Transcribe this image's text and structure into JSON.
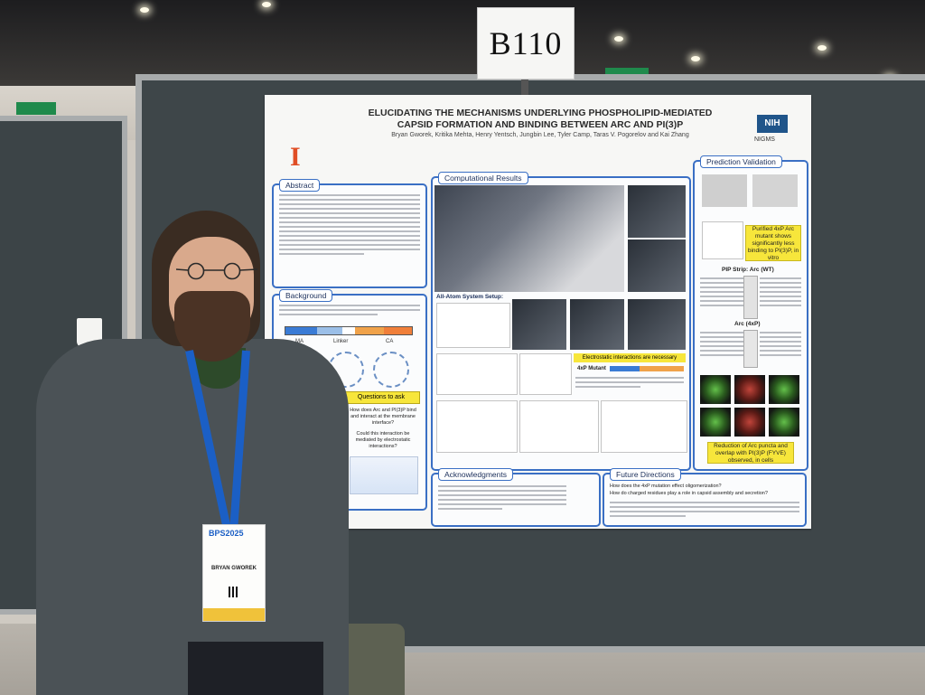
{
  "sign": {
    "label": "B110"
  },
  "poster": {
    "title_line1": "ELUCIDATING THE MECHANISMS UNDERLYING PHOSPHOLIPID-MEDIATED",
    "title_line2": "CAPSID FORMATION AND BINDING BETWEEN ARC AND PI(3)P",
    "authors": "Bryan Gworek, Kritika Mehta, Henry Yentsch, Jungbin Lee, Tyler Camp, Taras V. Pogorelov and Kai Zhang",
    "logo_uiuc": "I",
    "logo_nih": "NIH",
    "logo_nigms": "NIGMS",
    "sections": {
      "abstract": "Abstract",
      "background": "Background",
      "questions": "Questions to ask",
      "computational": "Computational Results",
      "all_atom": "All-Atom System Setup:",
      "electrostatic": "Electrostatic interactions are necessary",
      "mutant": "4xP Mutant",
      "acknowledgments": "Acknowledgments",
      "future": "Future Directions",
      "prediction": "Prediction Validation",
      "pip_strip_wt": "PIP Strip: Arc (WT)",
      "pip_strip_4xp": "Arc (4xP)",
      "purified_note": "Purified 4xP Arc mutant shows significantly less binding to PI(3)P, in vitro",
      "reduction_note": "Reduction of Arc puncta and overlap with PI(3)P (FYVE) observed, in cells",
      "question1": "How does Arc and PI(3)P bind and interact at the membrane interface?",
      "question2": "Could this interaction be mediated by electrostatic interactions?",
      "domain_ma": "MA",
      "domain_linker": "Linker",
      "domain_ca": "CA",
      "future_q1": "How does the 4xP mutation effect oligomerization?",
      "future_q2": "How do charged residues play a role in capsid assembly and secretion?"
    }
  },
  "badge": {
    "logo": "BPS2025",
    "name": "BRYAN GWOREK"
  }
}
